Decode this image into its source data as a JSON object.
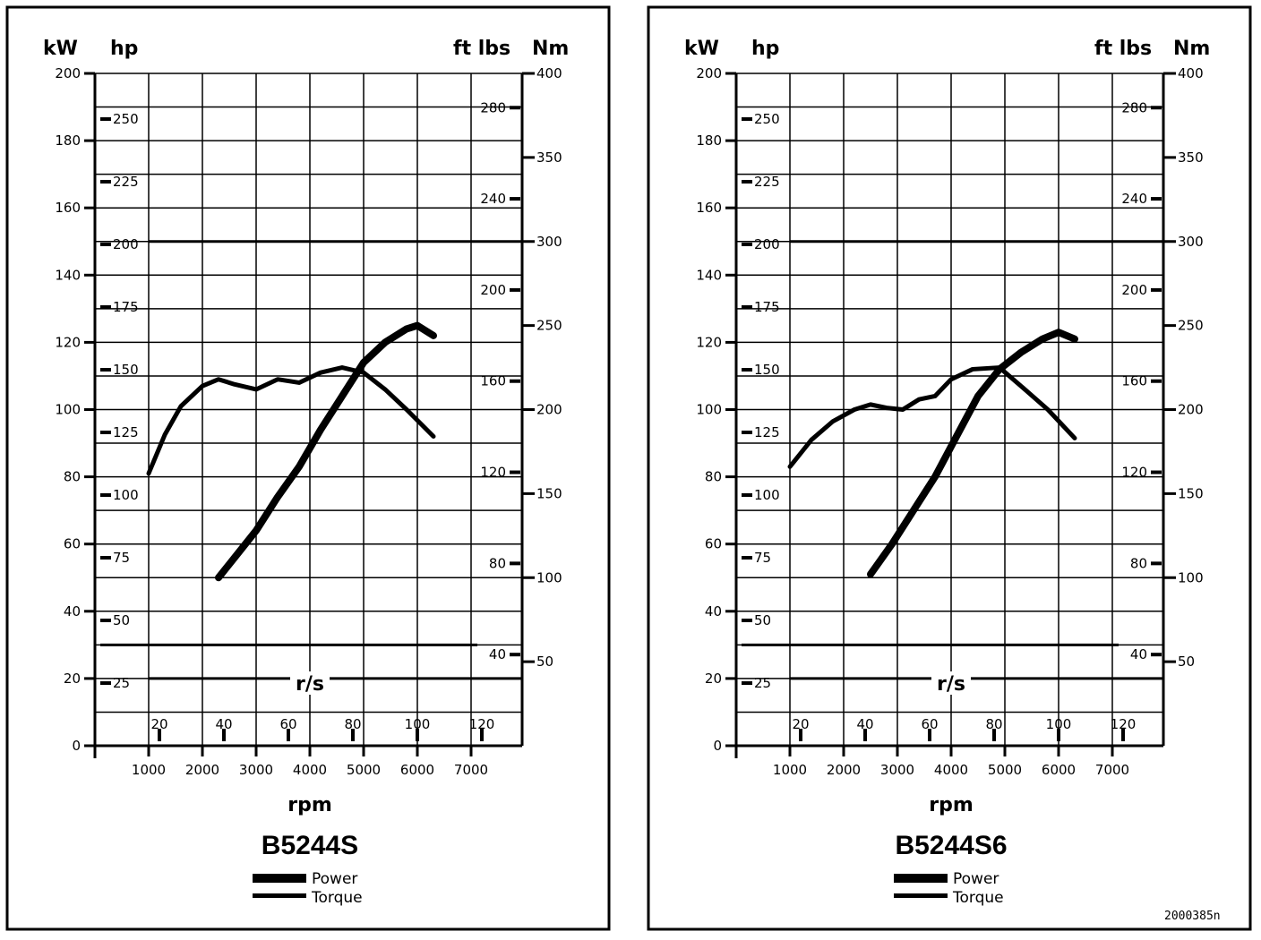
{
  "chart_data": [
    {
      "type": "line",
      "model": "B5244S",
      "units": {
        "kw": "kW",
        "hp": "hp",
        "ftlbs": "ft lbs",
        "nm": "Nm",
        "rpm": "rpm",
        "rs": "r/s"
      },
      "axes": {
        "rpm_ticks": [
          1000,
          2000,
          3000,
          4000,
          5000,
          6000,
          7000
        ],
        "rs_ticks": [
          20,
          40,
          60,
          80,
          100,
          120
        ],
        "kw_ticks": [
          0,
          20,
          40,
          60,
          80,
          100,
          120,
          140,
          160,
          180,
          200
        ],
        "hp_ticks": [
          25,
          50,
          75,
          100,
          125,
          150,
          175,
          200,
          225,
          250
        ],
        "nm_ticks": [
          50,
          100,
          150,
          200,
          250,
          300,
          350,
          400
        ],
        "ftlbs_ticks": [
          "40",
          "80",
          "120",
          "160",
          "200",
          "240",
          "280"
        ],
        "kw_range": [
          0,
          200
        ],
        "nm_range": [
          0,
          400
        ],
        "rpm_range": [
          0,
          8000
        ]
      },
      "series": [
        {
          "name": "Power",
          "axis": "kW",
          "x": [
            2300,
            2600,
            3000,
            3400,
            3800,
            4200,
            4600,
            5000,
            5400,
            5800,
            6000,
            6300
          ],
          "y": [
            50,
            56,
            64,
            74,
            83,
            94,
            104,
            114,
            120,
            124,
            125,
            122
          ]
        },
        {
          "name": "Torque",
          "axis": "Nm",
          "x": [
            1000,
            1300,
            1600,
            2000,
            2300,
            2600,
            3000,
            3400,
            3800,
            4200,
            4600,
            5000,
            5400,
            5800,
            6300
          ],
          "y": [
            162,
            185,
            202,
            214,
            218,
            215,
            212,
            218,
            216,
            222,
            225,
            222,
            212,
            200,
            184
          ]
        }
      ],
      "legend": [
        "Power",
        "Torque"
      ]
    },
    {
      "type": "line",
      "model": "B5244S6",
      "units": {
        "kw": "kW",
        "hp": "hp",
        "ftlbs": "ft lbs",
        "nm": "Nm",
        "rpm": "rpm",
        "rs": "r/s"
      },
      "axes": {
        "rpm_ticks": [
          1000,
          2000,
          3000,
          4000,
          5000,
          6000,
          7000
        ],
        "rs_ticks": [
          20,
          40,
          60,
          80,
          100,
          120
        ],
        "kw_ticks": [
          0,
          20,
          40,
          60,
          80,
          100,
          120,
          140,
          160,
          180,
          200
        ],
        "hp_ticks": [
          25,
          50,
          75,
          100,
          125,
          150,
          175,
          200,
          225,
          250
        ],
        "nm_ticks": [
          50,
          100,
          150,
          200,
          250,
          300,
          350,
          400
        ],
        "ftlbs_ticks": [
          "40",
          "80",
          "120",
          "160",
          "200",
          "240",
          "280"
        ],
        "kw_range": [
          0,
          200
        ],
        "nm_range": [
          0,
          400
        ],
        "rpm_range": [
          0,
          8000
        ]
      },
      "series": [
        {
          "name": "Power",
          "axis": "kW",
          "x": [
            2500,
            2900,
            3300,
            3700,
            4100,
            4500,
            4900,
            5300,
            5700,
            6000,
            6300
          ],
          "y": [
            51,
            60,
            70,
            80,
            92,
            104,
            112,
            117,
            121,
            123,
            121
          ]
        },
        {
          "name": "Torque",
          "axis": "Nm",
          "x": [
            1000,
            1400,
            1800,
            2200,
            2500,
            2800,
            3100,
            3400,
            3700,
            4000,
            4400,
            4900,
            5300,
            5800,
            6300
          ],
          "y": [
            166,
            182,
            193,
            200,
            203,
            201,
            200,
            206,
            208,
            218,
            224,
            225,
            214,
            200,
            183
          ]
        }
      ],
      "legend": [
        "Power",
        "Torque"
      ]
    }
  ],
  "footer": {
    "ref_code": "2000385n"
  }
}
